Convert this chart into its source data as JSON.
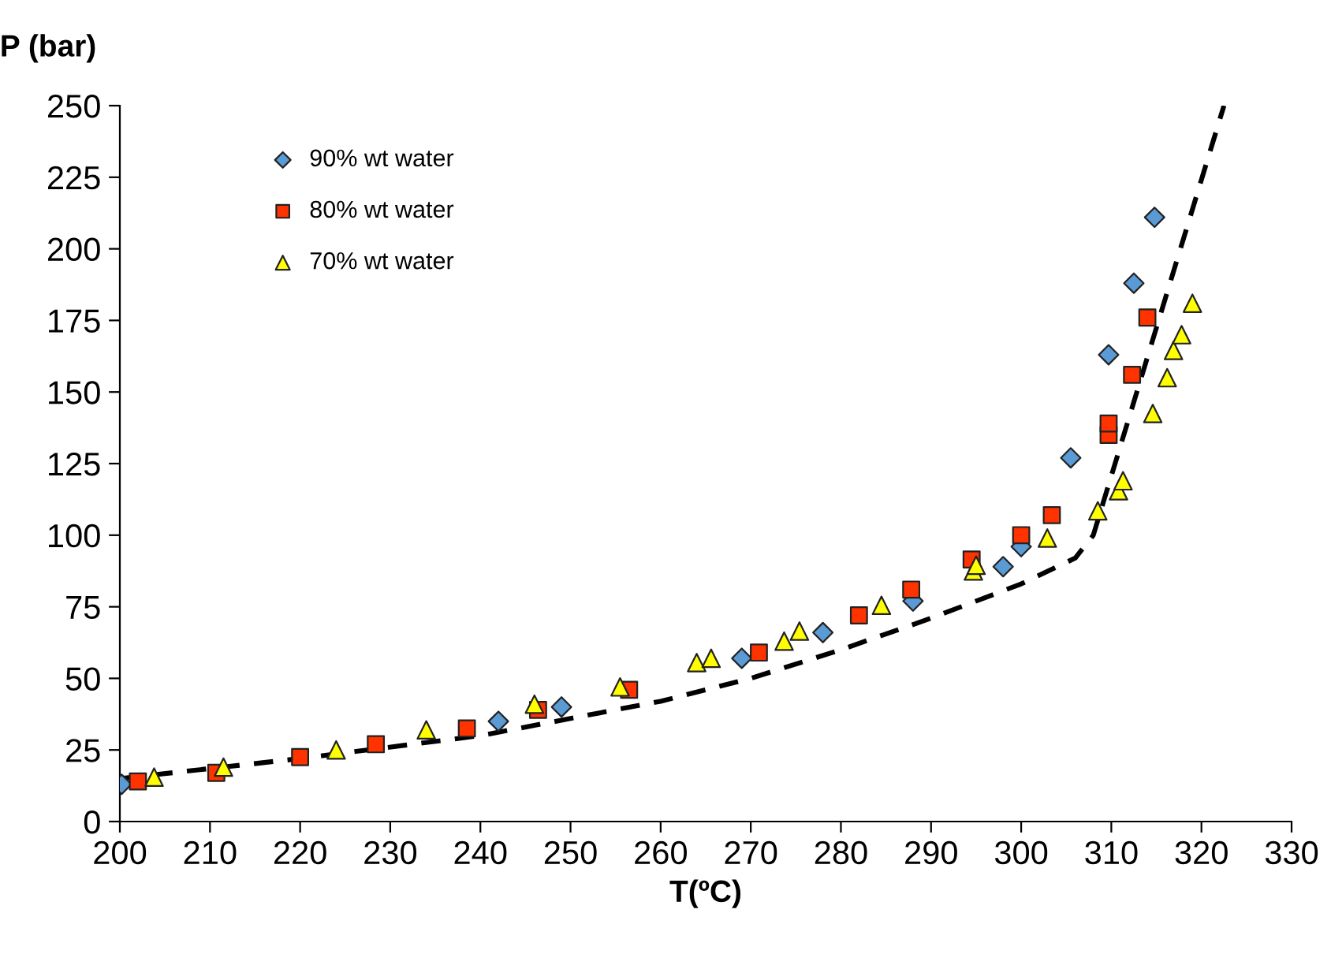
{
  "chart_data": {
    "type": "scatter",
    "xlabel": "T(ºC)",
    "ylabel": "P (bar)",
    "xlim": [
      200,
      330
    ],
    "xticks": [
      200,
      210,
      220,
      230,
      240,
      250,
      260,
      270,
      280,
      290,
      300,
      310,
      320,
      330
    ],
    "ylim": [
      0,
      250
    ],
    "yticks": [
      0,
      25,
      50,
      75,
      100,
      125,
      150,
      175,
      200,
      225,
      250
    ],
    "grid": false,
    "legend": "top left",
    "series": [
      {
        "name": "90% wt water",
        "color": "#5b9bd5",
        "marker": "diamond",
        "x": [
          200.2,
          242,
          249,
          269,
          278,
          288,
          298,
          300,
          305.5,
          309.7,
          312.5,
          314.8
        ],
        "values": [
          13,
          35,
          40,
          57,
          66,
          77,
          89,
          96,
          127,
          163,
          188,
          211
        ]
      },
      {
        "name": "80% wt water",
        "color": "#ff3300",
        "marker": "square",
        "x": [
          202,
          210.7,
          220,
          228.4,
          238.5,
          246.4,
          256.5,
          270.9,
          282,
          287.8,
          294.5,
          300,
          303.4,
          309.7,
          309.7,
          312.3,
          314
        ],
        "values": [
          14,
          17,
          22.5,
          27,
          32.5,
          39,
          46,
          59,
          72,
          81,
          91.5,
          100,
          107,
          135,
          139,
          156,
          176
        ]
      },
      {
        "name": "70% wt water",
        "color": "#ffff00",
        "marker": "triangle",
        "x": [
          203.8,
          211.5,
          224,
          234,
          246,
          255.5,
          264,
          265.6,
          273.7,
          275.4,
          284.5,
          294.7,
          295,
          302.9,
          308.5,
          310.8,
          311.3,
          314.6,
          316.2,
          316.9,
          317.8,
          319
        ],
        "values": [
          15.5,
          19,
          25,
          32,
          41,
          47,
          55.5,
          57,
          63,
          66.5,
          75.5,
          87.5,
          89.5,
          99,
          108.5,
          115.5,
          119,
          142.5,
          155,
          164.5,
          170,
          181
        ]
      },
      {
        "type": "line",
        "color": "#000000",
        "line_style": "dashed",
        "marker": "none",
        "x": [
          200,
          220,
          240,
          260,
          270,
          280,
          290,
          300,
          306,
          308,
          322.5
        ],
        "values": [
          15,
          22,
          30,
          42,
          50,
          60,
          71,
          83,
          92,
          100,
          250
        ]
      }
    ]
  }
}
